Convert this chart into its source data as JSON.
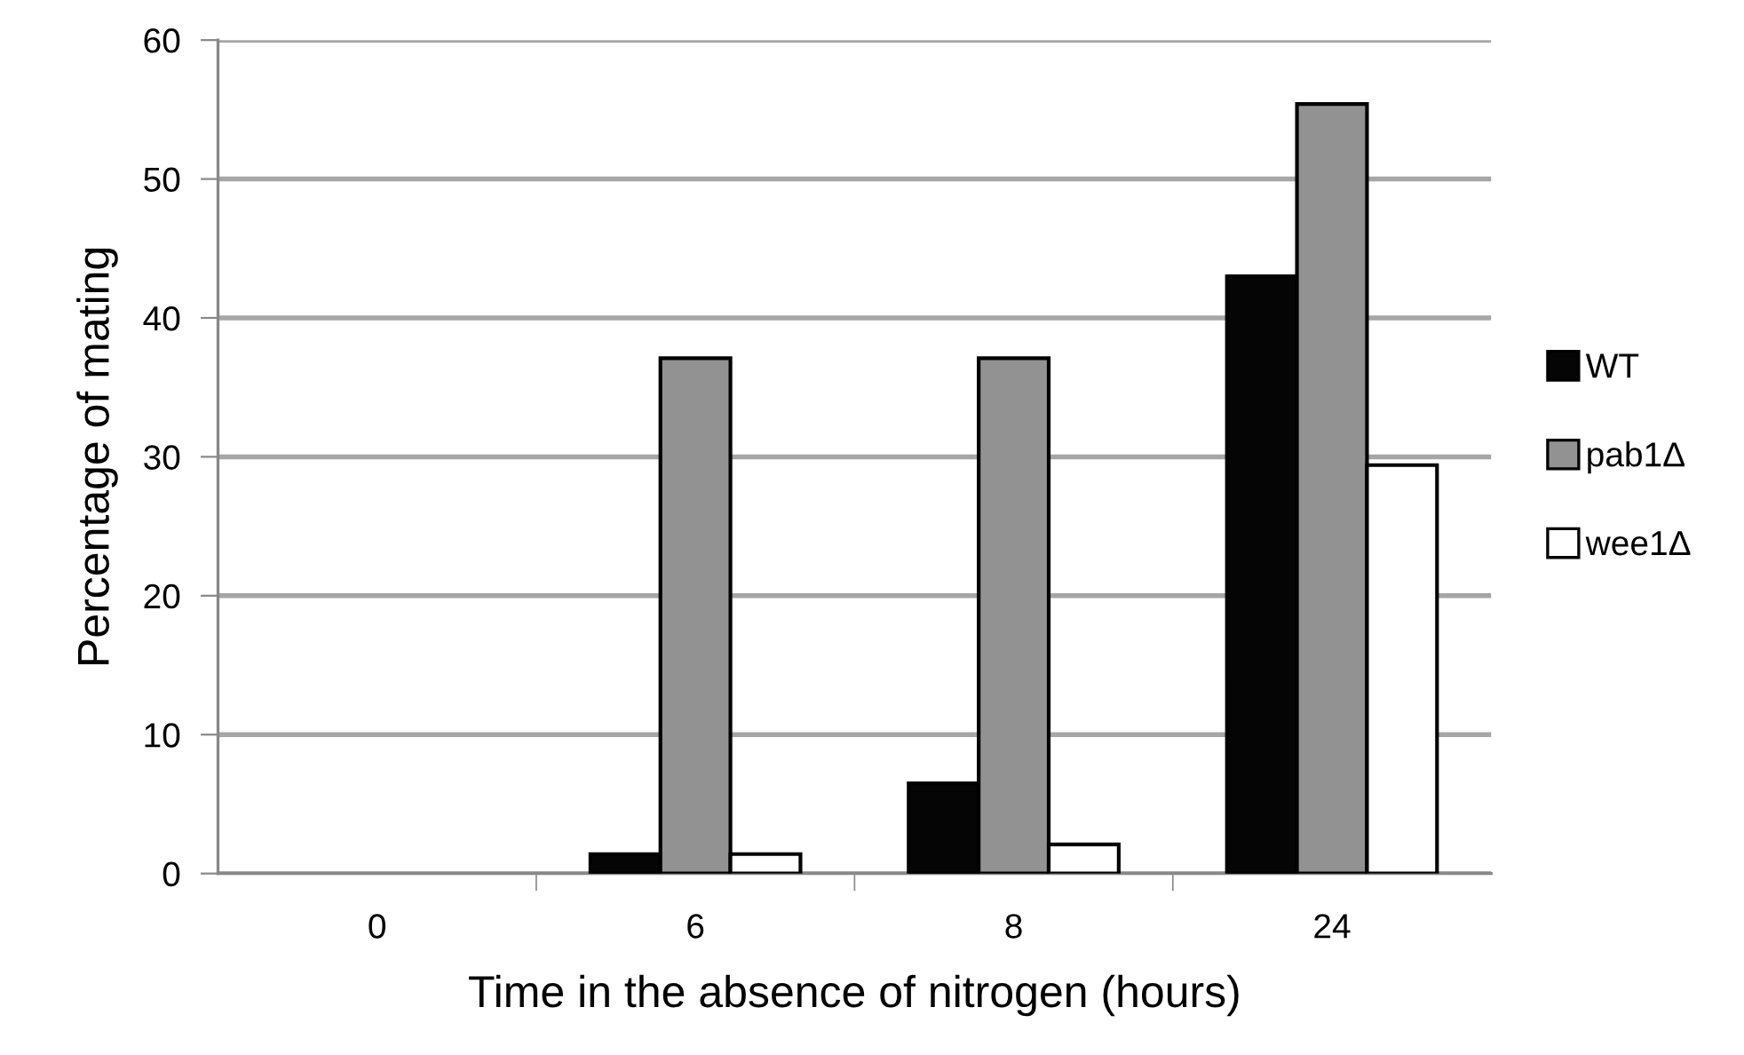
{
  "chart_data": {
    "type": "bar",
    "xlabel": "Time in the absence of nitrogen (hours)",
    "ylabel": "Percentage of mating",
    "categories": [
      "0",
      "6",
      "8",
      "24"
    ],
    "series": [
      {
        "name": "WT",
        "color": "#050505",
        "values": [
          0,
          1.4,
          6.5,
          43.0
        ]
      },
      {
        "name": "pab1Δ",
        "color": "#929292",
        "values": [
          0,
          37.1,
          37.1,
          55.4
        ]
      },
      {
        "name": "wee1Δ",
        "color": "#ffffff",
        "values": [
          0,
          1.4,
          2.1,
          29.4
        ]
      }
    ],
    "ylim": [
      0,
      60
    ],
    "yticks": [
      0,
      10,
      20,
      30,
      40,
      50,
      60
    ],
    "grid": "y",
    "legend": "right"
  }
}
